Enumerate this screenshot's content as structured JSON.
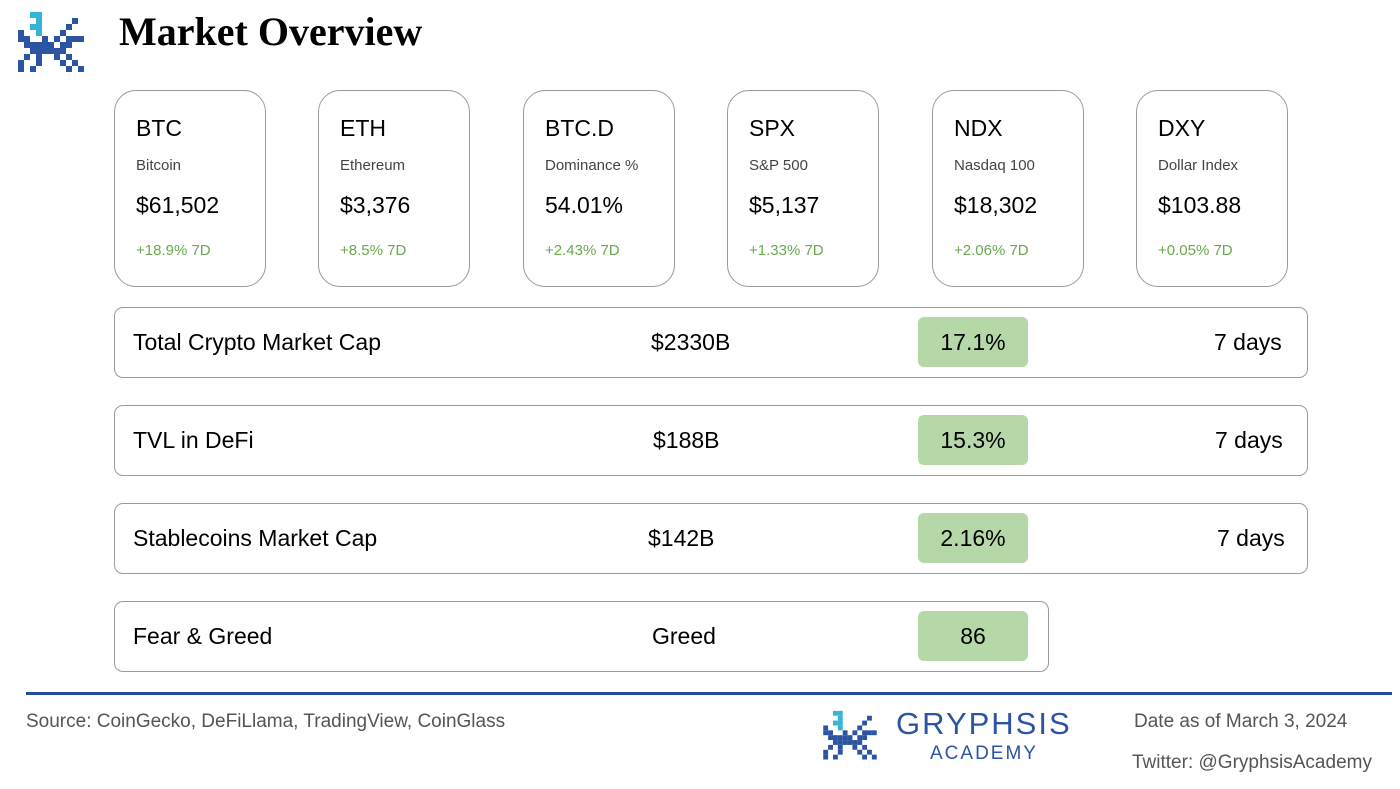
{
  "header": {
    "title": "Market Overview"
  },
  "cards": [
    {
      "symbol": "BTC",
      "name": "Bitcoin",
      "price": "$61,502",
      "change": "+18.9% 7D"
    },
    {
      "symbol": "ETH",
      "name": "Ethereum",
      "price": "$3,376",
      "change": "+8.5% 7D"
    },
    {
      "symbol": "BTC.D",
      "name": "Dominance %",
      "price": "54.01%",
      "change": "+2.43% 7D"
    },
    {
      "symbol": "SPX",
      "name": "S&P 500",
      "price": "$5,137",
      "change": "+1.33% 7D"
    },
    {
      "symbol": "NDX",
      "name": "Nasdaq 100",
      "price": "$18,302",
      "change": "+2.06% 7D"
    },
    {
      "symbol": "DXY",
      "name": "Dollar Index",
      "price": "$103.88",
      "change": "+0.05% 7D"
    }
  ],
  "metrics": [
    {
      "label": "Total Crypto Market Cap",
      "value": "$2330B",
      "change": "17.1%",
      "period": "7 days"
    },
    {
      "label": "TVL in DeFi",
      "value": "$188B",
      "change": "15.3%",
      "period": "7 days"
    },
    {
      "label": "Stablecoins Market Cap",
      "value": "$142B",
      "change": "2.16%",
      "period": "7 days"
    },
    {
      "label": "Fear & Greed",
      "value": "Greed",
      "change": "86"
    }
  ],
  "footer": {
    "source": "Source: CoinGecko, DeFiLlama, TradingView, CoinGlass",
    "date": "Date as of March 3, 2024",
    "twitter": "Twitter: @GryphsisAcademy",
    "brand_name": "GRYPHSIS",
    "brand_sub": "ACADEMY"
  },
  "colors": {
    "positive": "#6aa84f",
    "pill": "#b6d7a8",
    "brand_dark": "#2b55a3",
    "brand_light": "#35b5d6",
    "divider": "#234d9b"
  }
}
